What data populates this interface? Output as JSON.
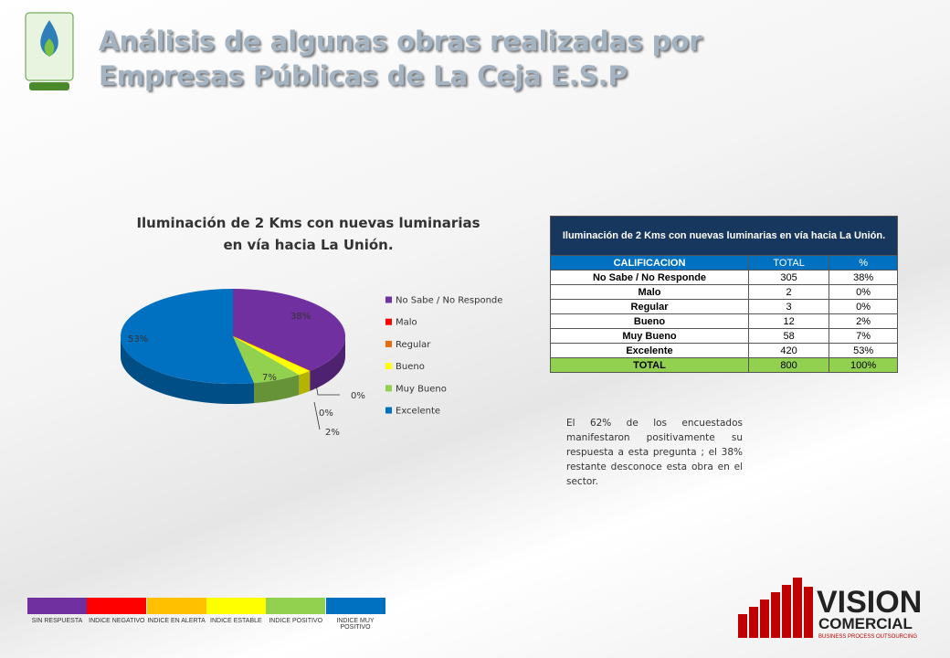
{
  "header": {
    "title": [
      "Análisis de algunas obras realizadas por",
      "Empresas Públicas de La Ceja E.S.P"
    ]
  },
  "chart_data": {
    "type": "pie",
    "title": "Iluminación de 2 Kms con nuevas luminarias en vía hacia La Unión.",
    "categories": [
      "No Sabe / No Responde",
      "Malo",
      "Regular",
      "Bueno",
      "Muy Bueno",
      "Excelente"
    ],
    "values": [
      38,
      0,
      0,
      2,
      7,
      53
    ],
    "value_labels": [
      "38%",
      "0%",
      "0%",
      "2%",
      "7%",
      "53%"
    ],
    "colors": [
      "#7030a0",
      "#ff0000",
      "#e46c0a",
      "#ffff00",
      "#92d050",
      "#0070c0"
    ],
    "legend": "right"
  },
  "table": {
    "title": "Iluminación de 2 Kms con nuevas luminarias en vía hacia La Unión.",
    "header": [
      "CALIFICACION",
      "TOTAL",
      "%"
    ],
    "rows": [
      [
        "No Sabe / No Responde",
        305,
        "38%"
      ],
      [
        "Malo",
        2,
        "0%"
      ],
      [
        "Regular",
        3,
        "0%"
      ],
      [
        "Bueno",
        12,
        "2%"
      ],
      [
        "Muy Bueno",
        58,
        "7%"
      ],
      [
        "Excelente",
        420,
        "53%"
      ]
    ],
    "total": [
      "TOTAL",
      800,
      "100%"
    ]
  },
  "note": "El 62% de los encuestados manifestaron positivamente su respuesta a esta pregunta ; el 38% restante desconoce esta obra en el sector.",
  "index_legend": [
    {
      "label": "SIN RESPUESTA",
      "color": "#7030a0"
    },
    {
      "label": "INDICE NEGATIVO",
      "color": "#ff0000"
    },
    {
      "label": "INDICE EN ALERTA",
      "color": "#ffc000"
    },
    {
      "label": "INDICE ESTABLE",
      "color": "#ffff00"
    },
    {
      "label": "INDICE POSITIVO",
      "color": "#92d050"
    },
    {
      "label": "INDICE MUY POSITIVO",
      "color": "#0070c0"
    }
  ],
  "brand": {
    "name": "VISION",
    "sub": "COMERCIAL",
    "tagline": "BUSINESS PROCESS OUTSOURCING"
  }
}
